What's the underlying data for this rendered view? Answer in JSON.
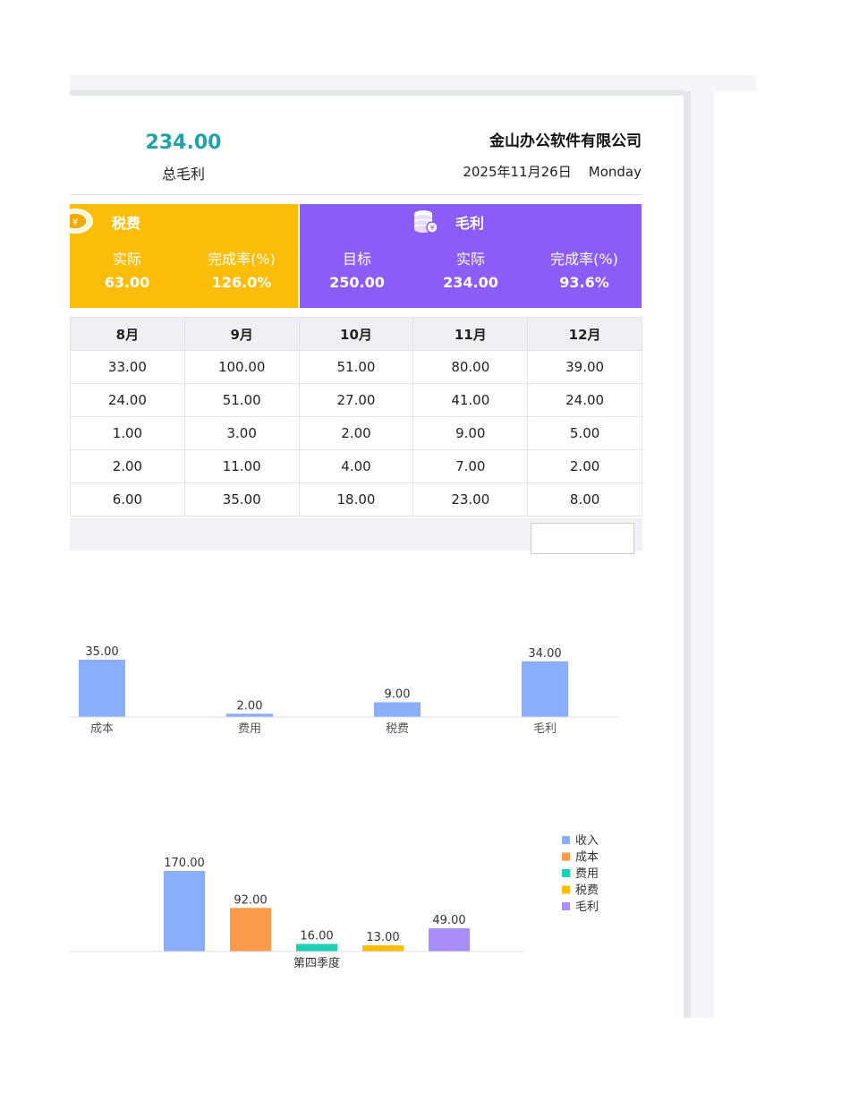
{
  "header": {
    "kpi_value": "234.00",
    "kpi_label": "总毛利",
    "company": "金山办公软件有限公司",
    "date": "2025年11月26日",
    "weekday": "Monday"
  },
  "panels": {
    "tax": {
      "title": "税费",
      "icon": "coin-icon",
      "metrics": [
        {
          "label": "实际",
          "value": "63.00"
        },
        {
          "label": "完成率(%)",
          "value": "126.0%"
        }
      ]
    },
    "profit": {
      "title": "毛利",
      "icon": "coin-stack-icon",
      "metrics": [
        {
          "label": "目标",
          "value": "250.00"
        },
        {
          "label": "实际",
          "value": "234.00"
        },
        {
          "label": "完成率(%)",
          "value": "93.6%"
        }
      ]
    }
  },
  "table": {
    "headers": [
      "8月",
      "9月",
      "10月",
      "11月",
      "12月"
    ],
    "rows": [
      [
        "33.00",
        "100.00",
        "51.00",
        "80.00",
        "39.00"
      ],
      [
        "24.00",
        "51.00",
        "27.00",
        "41.00",
        "24.00"
      ],
      [
        "1.00",
        "3.00",
        "2.00",
        "9.00",
        "5.00"
      ],
      [
        "2.00",
        "11.00",
        "4.00",
        "7.00",
        "2.00"
      ],
      [
        "6.00",
        "35.00",
        "18.00",
        "23.00",
        "8.00"
      ]
    ]
  },
  "colors": {
    "teal": "#1fa3a8",
    "tax_panel": "#fbbd08",
    "profit_panel": "#8b5cf6",
    "income": "#8aadfc",
    "cost": "#fa9a4a",
    "expense": "#1ecfb5",
    "tax": "#fbbd08",
    "profit": "#a88ef8"
  },
  "chart_data": [
    {
      "type": "bar",
      "categories": [
        "成本",
        "费用",
        "税费",
        "毛利"
      ],
      "values": [
        35.0,
        2.0,
        9.0,
        34.0
      ],
      "value_labels": [
        "35.00",
        "2.00",
        "9.00",
        "34.00"
      ],
      "title": "",
      "ylim": [
        0,
        35
      ],
      "grid": false
    },
    {
      "type": "bar",
      "categories": [
        "第四季度"
      ],
      "series": [
        {
          "name": "收入",
          "values": [
            170.0
          ],
          "label": "170.00",
          "color": "#8aadfc"
        },
        {
          "name": "成本",
          "values": [
            92.0
          ],
          "label": "92.00",
          "color": "#fa9a4a"
        },
        {
          "name": "费用",
          "values": [
            16.0
          ],
          "label": "16.00",
          "color": "#1ecfb5"
        },
        {
          "name": "税费",
          "values": [
            13.0
          ],
          "label": "13.00",
          "color": "#fbbd08"
        },
        {
          "name": "毛利",
          "values": [
            49.0
          ],
          "label": "49.00",
          "color": "#a88ef8"
        }
      ],
      "legend": "right",
      "ylim": [
        0,
        170
      ],
      "grid": false
    }
  ]
}
